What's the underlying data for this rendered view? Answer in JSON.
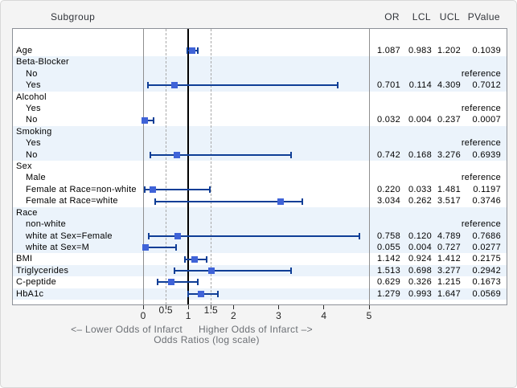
{
  "header": {
    "subgroup": "Subgroup",
    "or": "OR",
    "lcl": "LCL",
    "ucl": "UCL",
    "pvalue": "PValue"
  },
  "colors": {
    "band_blue": "#ebf3fb",
    "band_white": "#ffffff",
    "ci_line": "#0f3e96",
    "marker": "#3f63d8",
    "reference_line": "#000000",
    "dashed_gridline": "#a9a9a9",
    "axis_gridline_gray": "#8f8f8f",
    "panel_border": "#8c9097",
    "axis_text": "#6b6f74",
    "figure_background": "#f4f4f4"
  },
  "chart_data": {
    "type": "scatter",
    "variant": "forest-plot",
    "xlabel_lower": "<– Lower Odds of Infarct",
    "xlabel_higher": "Higher Odds of Infarct –>",
    "xlabel": "Odds Ratios (log scale)",
    "xlim": [
      0,
      5
    ],
    "reference_line": 1,
    "dashed_ref_lines": [
      0.5,
      1.5
    ],
    "ticks": [
      {
        "v": 0,
        "label": "0",
        "raised": false
      },
      {
        "v": 0.5,
        "label": "0.5",
        "raised": true
      },
      {
        "v": 1,
        "label": "1",
        "raised": false
      },
      {
        "v": 1.5,
        "label": "1.5",
        "raised": true
      },
      {
        "v": 2,
        "label": "2",
        "raised": false
      },
      {
        "v": 3,
        "label": "3",
        "raised": false
      },
      {
        "v": 4,
        "label": "4",
        "raised": false
      },
      {
        "v": 5,
        "label": "5",
        "raised": false
      }
    ],
    "rows": [
      {
        "label": "Age",
        "indent": 0,
        "band": "white",
        "or": 1.087,
        "lcl": 0.983,
        "ucl": 1.202,
        "p": "0.1039"
      },
      {
        "label": "Beta-Blocker",
        "indent": 0,
        "band": "blue"
      },
      {
        "label": "No",
        "indent": 1,
        "band": "blue",
        "p": "reference"
      },
      {
        "label": "Yes",
        "indent": 1,
        "band": "blue",
        "or": 0.701,
        "lcl": 0.114,
        "ucl": 4.309,
        "p": "0.7012"
      },
      {
        "label": "Alcohol",
        "indent": 0,
        "band": "white"
      },
      {
        "label": "Yes",
        "indent": 1,
        "band": "white",
        "p": "reference"
      },
      {
        "label": "No",
        "indent": 1,
        "band": "white",
        "or": 0.032,
        "lcl": 0.004,
        "ucl": 0.237,
        "p": "0.0007"
      },
      {
        "label": "Smoking",
        "indent": 0,
        "band": "blue"
      },
      {
        "label": "Yes",
        "indent": 1,
        "band": "blue",
        "p": "reference"
      },
      {
        "label": "No",
        "indent": 1,
        "band": "blue",
        "or": 0.742,
        "lcl": 0.168,
        "ucl": 3.276,
        "p": "0.6939"
      },
      {
        "label": "Sex",
        "indent": 0,
        "band": "white"
      },
      {
        "label": "Male",
        "indent": 1,
        "band": "white",
        "p": "reference"
      },
      {
        "label": "Female at Race=non-white",
        "indent": 1,
        "band": "white",
        "or": 0.22,
        "lcl": 0.033,
        "ucl": 1.481,
        "p": "0.1197"
      },
      {
        "label": "Female at Race=white",
        "indent": 1,
        "band": "white",
        "or": 3.034,
        "lcl": 0.262,
        "ucl": 3.517,
        "p": "0.3746"
      },
      {
        "label": "Race",
        "indent": 0,
        "band": "blue"
      },
      {
        "label": "non-white",
        "indent": 1,
        "band": "blue",
        "p": "reference"
      },
      {
        "label": "white at Sex=Female",
        "indent": 1,
        "band": "blue",
        "or": 0.758,
        "lcl": 0.12,
        "ucl": 4.789,
        "p": "0.7686"
      },
      {
        "label": "white at Sex=M",
        "indent": 1,
        "band": "blue",
        "or": 0.055,
        "lcl": 0.004,
        "ucl": 0.727,
        "p": "0.0277"
      },
      {
        "label": "BMI",
        "indent": 0,
        "band": "white",
        "or": 1.142,
        "lcl": 0.924,
        "ucl": 1.412,
        "p": "0.2175"
      },
      {
        "label": "Triglycerides",
        "indent": 0,
        "band": "blue",
        "or": 1.513,
        "lcl": 0.698,
        "ucl": 3.277,
        "p": "0.2942"
      },
      {
        "label": "C-peptide",
        "indent": 0,
        "band": "white",
        "or": 0.629,
        "lcl": 0.326,
        "ucl": 1.215,
        "p": "0.1673"
      },
      {
        "label": "HbA1c",
        "indent": 0,
        "band": "blue",
        "or": 1.279,
        "lcl": 0.993,
        "ucl": 1.647,
        "p": "0.0569"
      }
    ]
  }
}
